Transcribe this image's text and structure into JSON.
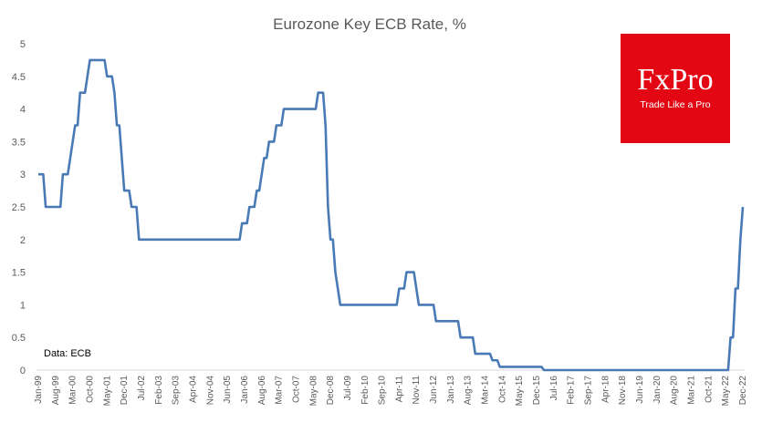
{
  "chart_data": {
    "type": "line",
    "title": "Eurozone  Key ECB Rate, %",
    "xlabel": "",
    "ylabel": "",
    "ylim": [
      0,
      5
    ],
    "yticks": [
      0,
      0.5,
      1,
      1.5,
      2,
      2.5,
      3,
      3.5,
      4,
      4.5,
      5
    ],
    "ytick_labels": [
      "0",
      "0.5",
      "1",
      "1.5",
      "2",
      "2.5",
      "3",
      "3.5",
      "4",
      "4.5",
      "5"
    ],
    "x_range": [
      "1999-01",
      "2022-12"
    ],
    "xtick_labels": [
      "Jan-99",
      "Aug-99",
      "Mar-00",
      "Oct-00",
      "May-01",
      "Dec-01",
      "Jul-02",
      "Feb-03",
      "Sep-03",
      "Apr-04",
      "Nov-04",
      "Jun-05",
      "Jan-06",
      "Aug-06",
      "Mar-07",
      "Oct-07",
      "May-08",
      "Dec-08",
      "Jul-09",
      "Feb-10",
      "Sep-10",
      "Apr-11",
      "Nov-11",
      "Jun-12",
      "Jan-13",
      "Aug-13",
      "Mar-14",
      "Oct-14",
      "May-15",
      "Dec-15",
      "Jul-16",
      "Feb-17",
      "Sep-17",
      "Apr-18",
      "Nov-18",
      "Jun-19",
      "Jan-20",
      "Aug-20",
      "Mar-21",
      "Oct-21",
      "May-22",
      "Dec-22"
    ],
    "grid": false,
    "legend": "none",
    "color": "#4a7ab5",
    "note": "Data: ECB",
    "series": [
      {
        "points": [
          [
            "1999-01",
            3.0
          ],
          [
            "1999-03",
            3.0
          ],
          [
            "1999-04",
            2.5
          ],
          [
            "1999-10",
            2.5
          ],
          [
            "1999-11",
            3.0
          ],
          [
            "2000-01",
            3.0
          ],
          [
            "2000-02",
            3.25
          ],
          [
            "2000-03",
            3.5
          ],
          [
            "2000-04",
            3.75
          ],
          [
            "2000-05",
            3.75
          ],
          [
            "2000-06",
            4.25
          ],
          [
            "2000-08",
            4.25
          ],
          [
            "2000-09",
            4.5
          ],
          [
            "2000-10",
            4.75
          ],
          [
            "2001-04",
            4.75
          ],
          [
            "2001-05",
            4.5
          ],
          [
            "2001-07",
            4.5
          ],
          [
            "2001-08",
            4.25
          ],
          [
            "2001-09",
            3.75
          ],
          [
            "2001-10",
            3.75
          ],
          [
            "2001-11",
            3.25
          ],
          [
            "2001-12",
            2.75
          ],
          [
            "2002-02",
            2.75
          ],
          [
            "2002-03",
            2.5
          ],
          [
            "2002-05",
            2.5
          ],
          [
            "2002-06",
            2.0
          ],
          [
            "2005-11",
            2.0
          ],
          [
            "2005-12",
            2.25
          ],
          [
            "2006-02",
            2.25
          ],
          [
            "2006-03",
            2.5
          ],
          [
            "2006-05",
            2.5
          ],
          [
            "2006-06",
            2.75
          ],
          [
            "2006-07",
            2.75
          ],
          [
            "2006-08",
            3.0
          ],
          [
            "2006-09",
            3.25
          ],
          [
            "2006-10",
            3.25
          ],
          [
            "2006-11",
            3.5
          ],
          [
            "2007-01",
            3.5
          ],
          [
            "2007-02",
            3.75
          ],
          [
            "2007-04",
            3.75
          ],
          [
            "2007-05",
            4.0
          ],
          [
            "2008-06",
            4.0
          ],
          [
            "2008-07",
            4.25
          ],
          [
            "2008-09",
            4.25
          ],
          [
            "2008-10",
            3.75
          ],
          [
            "2008-11",
            2.5
          ],
          [
            "2008-12",
            2.0
          ],
          [
            "2009-01",
            2.0
          ],
          [
            "2009-02",
            1.5
          ],
          [
            "2009-03",
            1.25
          ],
          [
            "2009-04",
            1.0
          ],
          [
            "2011-03",
            1.0
          ],
          [
            "2011-04",
            1.25
          ],
          [
            "2011-06",
            1.25
          ],
          [
            "2011-07",
            1.5
          ],
          [
            "2011-10",
            1.5
          ],
          [
            "2011-11",
            1.25
          ],
          [
            "2011-12",
            1.0
          ],
          [
            "2012-06",
            1.0
          ],
          [
            "2012-07",
            0.75
          ],
          [
            "2013-04",
            0.75
          ],
          [
            "2013-05",
            0.5
          ],
          [
            "2013-10",
            0.5
          ],
          [
            "2013-11",
            0.25
          ],
          [
            "2014-05",
            0.25
          ],
          [
            "2014-06",
            0.15
          ],
          [
            "2014-08",
            0.15
          ],
          [
            "2014-09",
            0.05
          ],
          [
            "2016-02",
            0.05
          ],
          [
            "2016-03",
            0.0
          ],
          [
            "2022-06",
            0.0
          ],
          [
            "2022-07",
            0.5
          ],
          [
            "2022-08",
            0.5
          ],
          [
            "2022-09",
            1.25
          ],
          [
            "2022-10",
            1.25
          ],
          [
            "2022-11",
            2.0
          ],
          [
            "2022-12",
            2.5
          ]
        ]
      }
    ]
  },
  "logo": {
    "main": "FxPro",
    "tagline": "Trade Like a Pro"
  }
}
